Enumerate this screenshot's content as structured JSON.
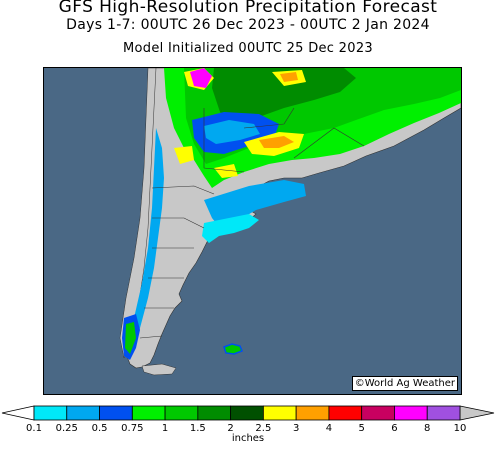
{
  "header": {
    "title": "GFS High-Resolution Precipitation Forecast",
    "period": "Days 1-7: 00UTC 26 Dec 2023 - 00UTC 2 Jan 2024",
    "init": "Model Initialized 00UTC 25 Dec 2023"
  },
  "map": {
    "credit": "©World Ag Weather",
    "ocean_color": "#4a6885",
    "land_color": "#c8c8c8"
  },
  "legend": {
    "units": "inches",
    "labels": [
      "0.1",
      "0.25",
      "0.5",
      "0.75",
      "1",
      "1.5",
      "2",
      "2.5",
      "3",
      "4",
      "5",
      "6",
      "8",
      "10"
    ],
    "colors": [
      "#00e8f8",
      "#00a8f0",
      "#0050f0",
      "#00f000",
      "#00c800",
      "#008c00",
      "#005000",
      "#ffff00",
      "#ffa000",
      "#ff0000",
      "#c80060",
      "#ff00ff",
      "#a050e0"
    ]
  }
}
